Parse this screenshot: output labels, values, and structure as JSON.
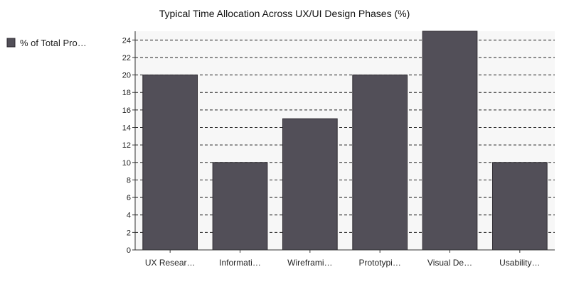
{
  "chart_data": {
    "type": "bar",
    "title": "Typical Time Allocation Across UX/UI Design Phases (%)",
    "xlabel": "",
    "ylabel": "",
    "categories": [
      "UX Resear…",
      "Informati…",
      "Wireframi…",
      "Prototypi…",
      "Visual De…",
      "Usability…"
    ],
    "series": [
      {
        "name": "% of Total Pro…",
        "values": [
          20,
          10,
          15,
          20,
          25,
          10
        ],
        "color": "#524f58"
      }
    ],
    "ylim": [
      0,
      25
    ],
    "yticks": [
      0,
      2,
      4,
      6,
      8,
      10,
      12,
      14,
      16,
      18,
      20,
      22,
      24
    ],
    "grid": true,
    "legend_position": "left",
    "colors": {
      "plot_background": "#f7f7f7",
      "bar_stroke": "#2d2a30"
    }
  }
}
